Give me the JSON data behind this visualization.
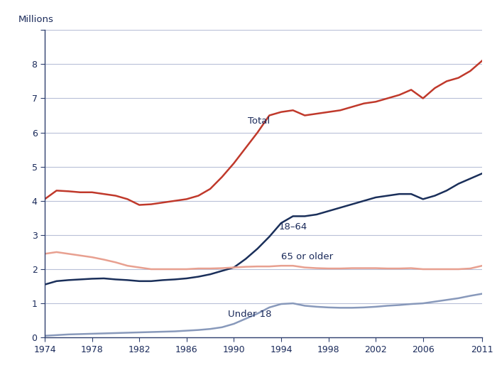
{
  "years": [
    1974,
    1975,
    1976,
    1977,
    1978,
    1979,
    1980,
    1981,
    1982,
    1983,
    1984,
    1985,
    1986,
    1987,
    1988,
    1989,
    1990,
    1991,
    1992,
    1993,
    1994,
    1995,
    1996,
    1997,
    1998,
    1999,
    2000,
    2001,
    2002,
    2003,
    2004,
    2005,
    2006,
    2007,
    2008,
    2009,
    2010,
    2011
  ],
  "total": [
    4.05,
    4.3,
    4.28,
    4.25,
    4.25,
    4.2,
    4.15,
    4.05,
    3.88,
    3.9,
    3.95,
    4.0,
    4.05,
    4.15,
    4.35,
    4.7,
    5.1,
    5.55,
    6.0,
    6.5,
    6.6,
    6.65,
    6.5,
    6.55,
    6.6,
    6.65,
    6.75,
    6.85,
    6.9,
    7.0,
    7.1,
    7.25,
    7.0,
    7.3,
    7.5,
    7.6,
    7.8,
    8.1
  ],
  "age18_64": [
    1.55,
    1.65,
    1.68,
    1.7,
    1.72,
    1.73,
    1.7,
    1.68,
    1.65,
    1.65,
    1.68,
    1.7,
    1.73,
    1.78,
    1.85,
    1.95,
    2.05,
    2.3,
    2.6,
    2.95,
    3.35,
    3.55,
    3.55,
    3.6,
    3.7,
    3.8,
    3.9,
    4.0,
    4.1,
    4.15,
    4.2,
    4.2,
    4.05,
    4.15,
    4.3,
    4.5,
    4.65,
    4.8
  ],
  "age65plus": [
    2.45,
    2.5,
    2.45,
    2.4,
    2.35,
    2.28,
    2.2,
    2.1,
    2.05,
    2.0,
    2.0,
    2.0,
    2.0,
    2.02,
    2.02,
    2.03,
    2.05,
    2.07,
    2.08,
    2.08,
    2.1,
    2.1,
    2.05,
    2.03,
    2.02,
    2.02,
    2.03,
    2.03,
    2.03,
    2.02,
    2.02,
    2.03,
    2.0,
    2.0,
    2.0,
    2.0,
    2.02,
    2.1
  ],
  "under18": [
    0.05,
    0.07,
    0.09,
    0.1,
    0.11,
    0.12,
    0.13,
    0.14,
    0.15,
    0.16,
    0.17,
    0.18,
    0.2,
    0.22,
    0.25,
    0.3,
    0.4,
    0.55,
    0.7,
    0.88,
    0.98,
    1.0,
    0.93,
    0.9,
    0.88,
    0.87,
    0.87,
    0.88,
    0.9,
    0.93,
    0.95,
    0.98,
    1.0,
    1.05,
    1.1,
    1.15,
    1.22,
    1.28
  ],
  "total_color": "#c0392b",
  "age18_64_color": "#1a2f5a",
  "age65plus_color": "#e8a090",
  "under18_color": "#8899bb",
  "ylabel": "Millions",
  "ylim": [
    0,
    9
  ],
  "yticks": [
    0,
    1,
    2,
    3,
    4,
    5,
    6,
    7,
    8,
    9
  ],
  "xticks": [
    1974,
    1978,
    1982,
    1986,
    1990,
    1994,
    1998,
    2002,
    2006,
    2011
  ],
  "label_total": "Total",
  "label_18_64": "18–64",
  "label_65plus": "65 or older",
  "label_under18": "Under 18",
  "bg_color": "#ffffff",
  "spine_color": "#2e3f6e",
  "grid_color": "#b8c0d8",
  "linewidth": 1.8,
  "text_color": "#1a2a5a",
  "annotation_fontsize": 9.5
}
